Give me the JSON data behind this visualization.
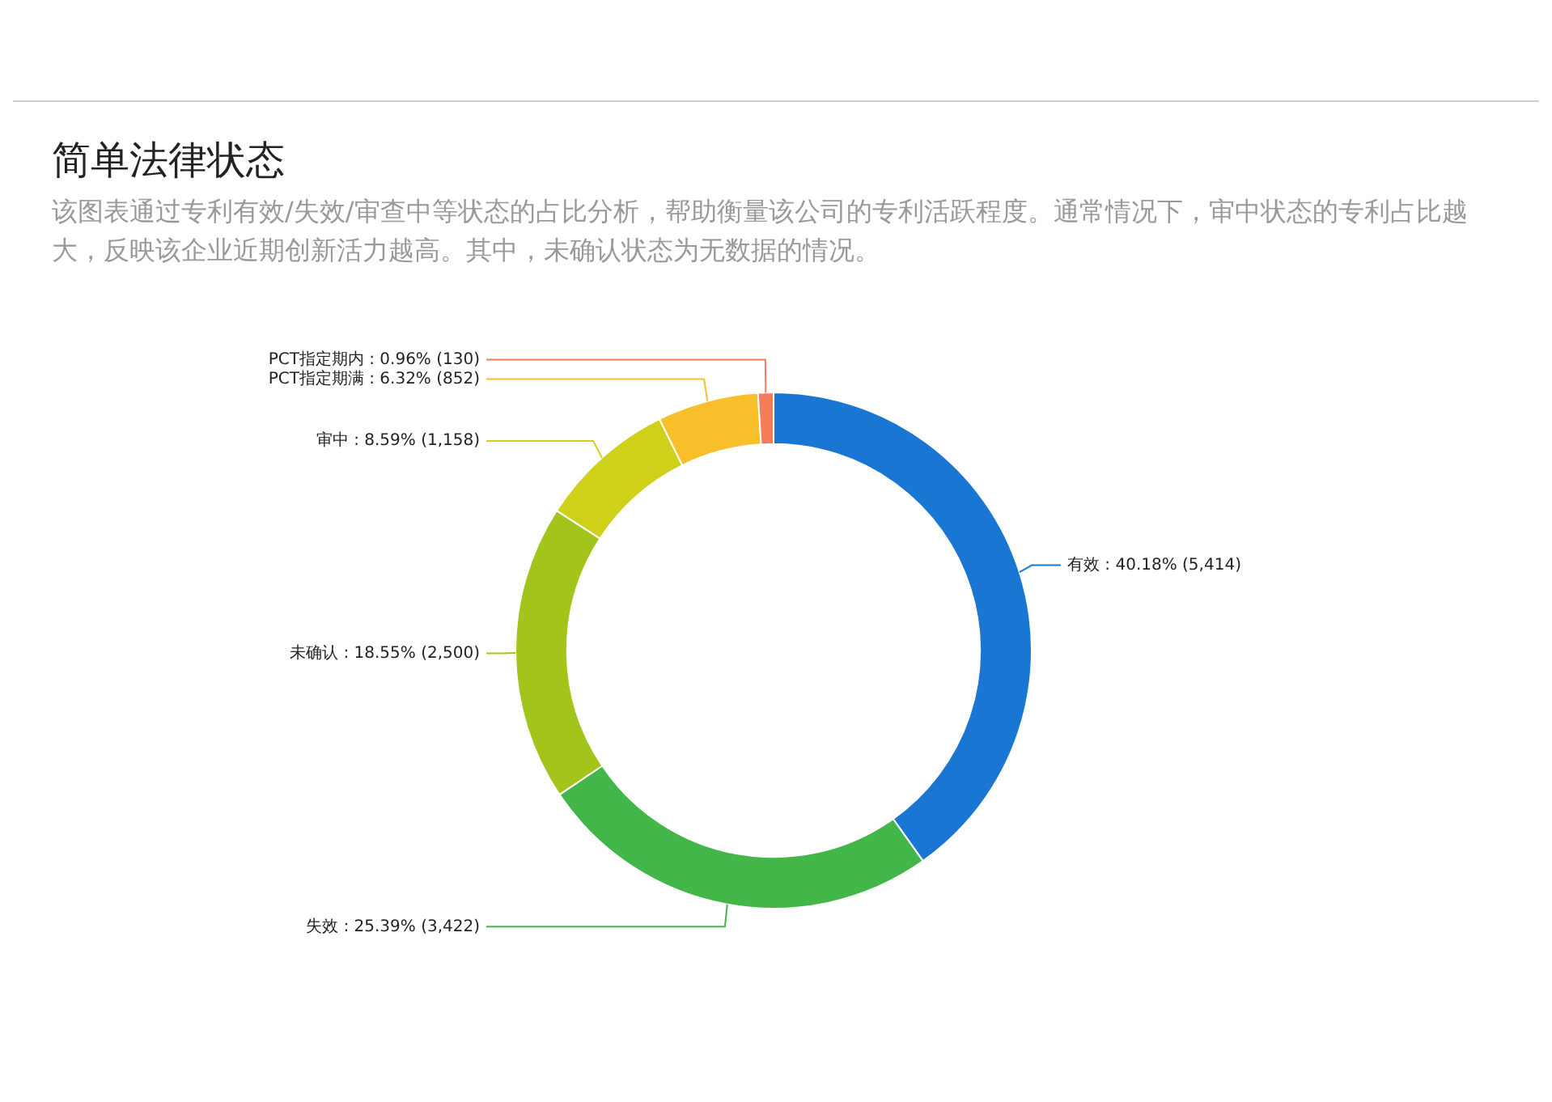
{
  "chart_data": {
    "type": "donut",
    "title": "简单法律状态",
    "subtitle": "该图表通过专利有效/失效/审查中等状态的占比分析，帮助衡量该公司的专利活跃程度。通常情况下，审中状态的专利占比越大，反映该企业近期创新活力越高。其中，未确认状态为无数据的情况。",
    "categories": [
      "有效",
      "失效",
      "未确认",
      "审中",
      "PCT指定期满",
      "PCT指定期内"
    ],
    "values": [
      5414,
      3422,
      2500,
      1158,
      852,
      130
    ],
    "value_labels": [
      "40.18% (5,414)",
      "25.39% (3,422)",
      "18.55% (2,500)",
      "8.59% (1,158)",
      "6.32% (852)",
      "0.96% (130)"
    ],
    "colors": [
      "#1976d2",
      "#43b649",
      "#a3c41a",
      "#cfd01a",
      "#f9bf2a",
      "#f47c5a"
    ],
    "legend": false
  }
}
